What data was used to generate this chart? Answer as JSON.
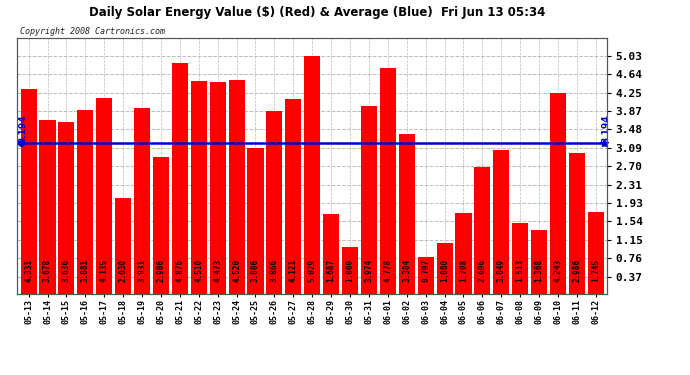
{
  "title": "Daily Solar Energy Value ($) (Red) & Average (Blue)  Fri Jun 13 05:34",
  "copyright": "Copyright 2008 Cartronics.com",
  "average": 3.194,
  "avg_label": "3.194",
  "ylim_max": 5.42,
  "yticks": [
    0.37,
    0.76,
    1.15,
    1.54,
    1.93,
    2.31,
    2.7,
    3.09,
    3.48,
    3.87,
    4.25,
    4.64,
    5.03
  ],
  "bar_color": "#ff0000",
  "avg_color": "#0000cc",
  "bg_color": "#ffffff",
  "plot_bg": "#ffffff",
  "grid_color": "#bbbbbb",
  "label_color": "#000000",
  "categories": [
    "05-13",
    "05-14",
    "05-15",
    "05-16",
    "05-17",
    "05-18",
    "05-19",
    "05-20",
    "05-21",
    "05-22",
    "05-23",
    "05-24",
    "05-25",
    "05-26",
    "05-27",
    "05-28",
    "05-29",
    "05-30",
    "05-31",
    "06-01",
    "06-02",
    "06-03",
    "06-04",
    "06-05",
    "06-06",
    "06-07",
    "06-08",
    "06-09",
    "06-10",
    "06-11",
    "06-12"
  ],
  "values": [
    4.331,
    3.678,
    3.636,
    3.881,
    4.135,
    2.03,
    3.931,
    2.906,
    4.876,
    4.51,
    4.473,
    4.52,
    3.086,
    3.866,
    4.121,
    5.029,
    1.687,
    1.0,
    3.974,
    4.778,
    3.384,
    0.797,
    1.08,
    1.708,
    2.696,
    3.049,
    1.513,
    1.368,
    4.243,
    2.986,
    1.745
  ],
  "value_labels": [
    "4.331",
    "3.678",
    "3.636",
    "3.881",
    "4.135",
    "2.030",
    "3.931",
    "2.906",
    "4.876",
    "4.510",
    "4.473",
    "4.520",
    "3.086",
    "3.866",
    "4.121",
    "5.029",
    "1.687",
    "1.000",
    "3.974",
    "4.778",
    "3.384",
    "0.797",
    "1.080",
    "1.708",
    "2.696",
    "3.049",
    "1.513",
    "1.368",
    "4.243",
    "2.986",
    "1.745"
  ]
}
